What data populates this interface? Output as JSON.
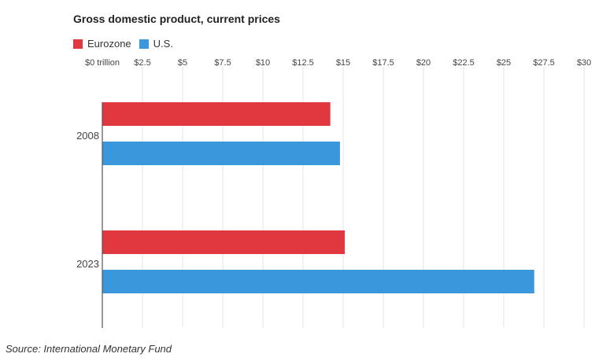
{
  "chart_data": {
    "type": "bar",
    "orientation": "horizontal",
    "title": "Gross domestic product, current prices",
    "categories": [
      "2008",
      "2023"
    ],
    "series": [
      {
        "name": "Eurozone",
        "color": "#e0383e",
        "values": [
          14.2,
          15.1
        ]
      },
      {
        "name": "U.S.",
        "color": "#3b97dc",
        "values": [
          14.8,
          26.9
        ]
      }
    ],
    "xlim": [
      0,
      30
    ],
    "x_ticks": [
      0,
      2.5,
      5,
      7.5,
      10,
      12.5,
      15,
      17.5,
      20,
      22.5,
      25,
      27.5,
      30
    ],
    "x_tick_labels": [
      "$0 trillion",
      "$2.5",
      "$5",
      "$7.5",
      "$10",
      "$12.5",
      "$15",
      "$17.5",
      "$20",
      "$22.5",
      "$25",
      "$27.5",
      "$30"
    ],
    "legend_position": "top-left",
    "grid": true,
    "source": "Source: International Monetary Fund"
  }
}
